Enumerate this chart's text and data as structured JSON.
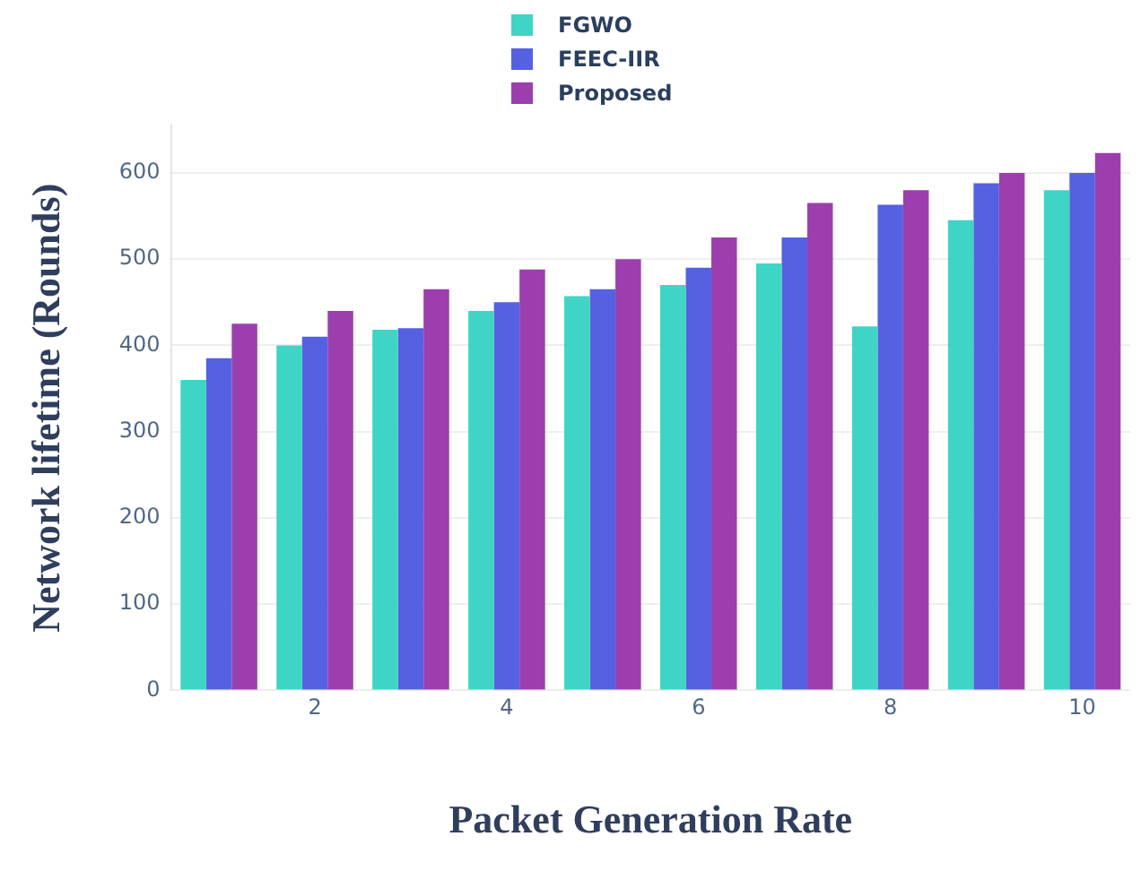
{
  "chart_data": {
    "type": "bar",
    "xlabel": "Packet Generation Rate",
    "ylabel": "Network lifetime (Rounds)",
    "x": [
      1,
      2,
      3,
      4,
      5,
      6,
      7,
      8,
      9,
      10
    ],
    "xlim": [
      0.5,
      10.5
    ],
    "xticks": [
      2,
      4,
      6,
      8,
      10
    ],
    "ylim": [
      0,
      655
    ],
    "yticks": [
      0,
      100,
      200,
      300,
      400,
      500,
      600
    ],
    "grid": "y",
    "legend": "top",
    "series": [
      {
        "name": "FGWO",
        "color": "#3ed4c6",
        "values": [
          360,
          400,
          418,
          440,
          457,
          470,
          495,
          422,
          545,
          580
        ]
      },
      {
        "name": "FEEC-IIR",
        "color": "#5561e0",
        "values": [
          385,
          410,
          420,
          450,
          465,
          490,
          525,
          563,
          588,
          600
        ]
      },
      {
        "name": "Proposed",
        "color": "#9c3ead",
        "values": [
          425,
          440,
          465,
          488,
          500,
          525,
          565,
          580,
          600,
          623
        ]
      }
    ]
  }
}
